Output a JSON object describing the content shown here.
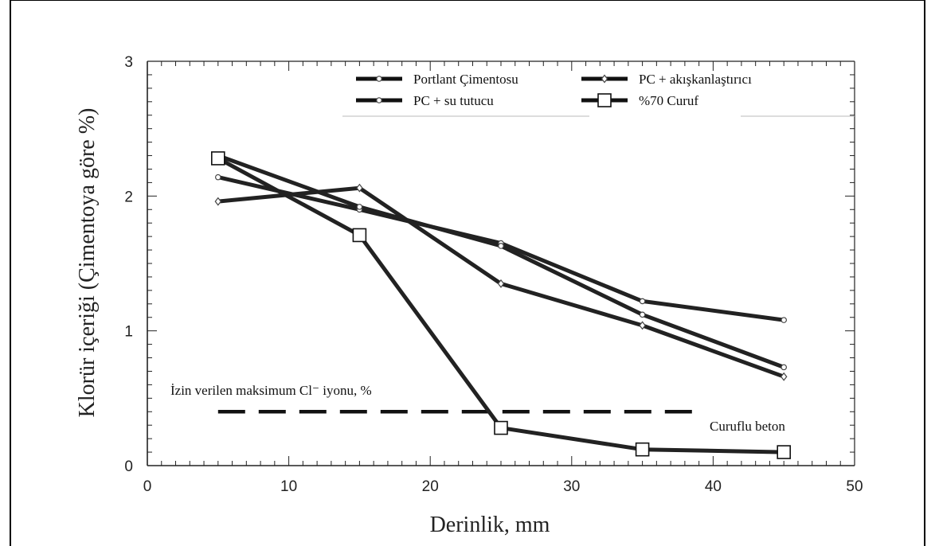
{
  "chart_data": {
    "type": "line",
    "title": "",
    "xlabel": "Derinlik, mm",
    "ylabel": "Klorür içeriği (Çimentoya göre %)",
    "xlim": [
      0,
      50
    ],
    "ylim": [
      0,
      3
    ],
    "xticks": [
      0,
      10,
      20,
      30,
      40,
      50
    ],
    "yticks": [
      0,
      1,
      2,
      3
    ],
    "grid": false,
    "legend_position": "top-right",
    "series": [
      {
        "name": "Portlant Çimentosu",
        "marker": "circle",
        "points": [
          [
            5,
            2.14
          ],
          [
            15,
            1.9
          ],
          [
            25,
            1.65
          ],
          [
            35,
            1.22
          ],
          [
            45,
            1.08
          ]
        ]
      },
      {
        "name": "PC + su tutucu",
        "marker": "circle",
        "points": [
          [
            5,
            2.3
          ],
          [
            15,
            1.92
          ],
          [
            25,
            1.63
          ],
          [
            35,
            1.12
          ],
          [
            45,
            0.73
          ]
        ]
      },
      {
        "name": "PC + akışkanlaştırıcı",
        "marker": "diamond",
        "points": [
          [
            5,
            1.96
          ],
          [
            15,
            2.06
          ],
          [
            25,
            1.35
          ],
          [
            35,
            1.04
          ],
          [
            45,
            0.66
          ]
        ]
      },
      {
        "name": "%70 Curuf",
        "marker": "square",
        "points": [
          [
            5,
            2.28
          ],
          [
            15,
            1.71
          ],
          [
            25,
            0.28
          ],
          [
            35,
            0.12
          ],
          [
            45,
            0.1
          ]
        ]
      }
    ],
    "reference_line": {
      "label": "İzin verilen maksimum Cl⁻ iyonu, %",
      "y": 0.4,
      "x_range": [
        5,
        39
      ],
      "style": "dashed"
    },
    "annotations": [
      {
        "text": "Curuflu beton",
        "x": 40.5,
        "y": 0.27
      }
    ]
  }
}
